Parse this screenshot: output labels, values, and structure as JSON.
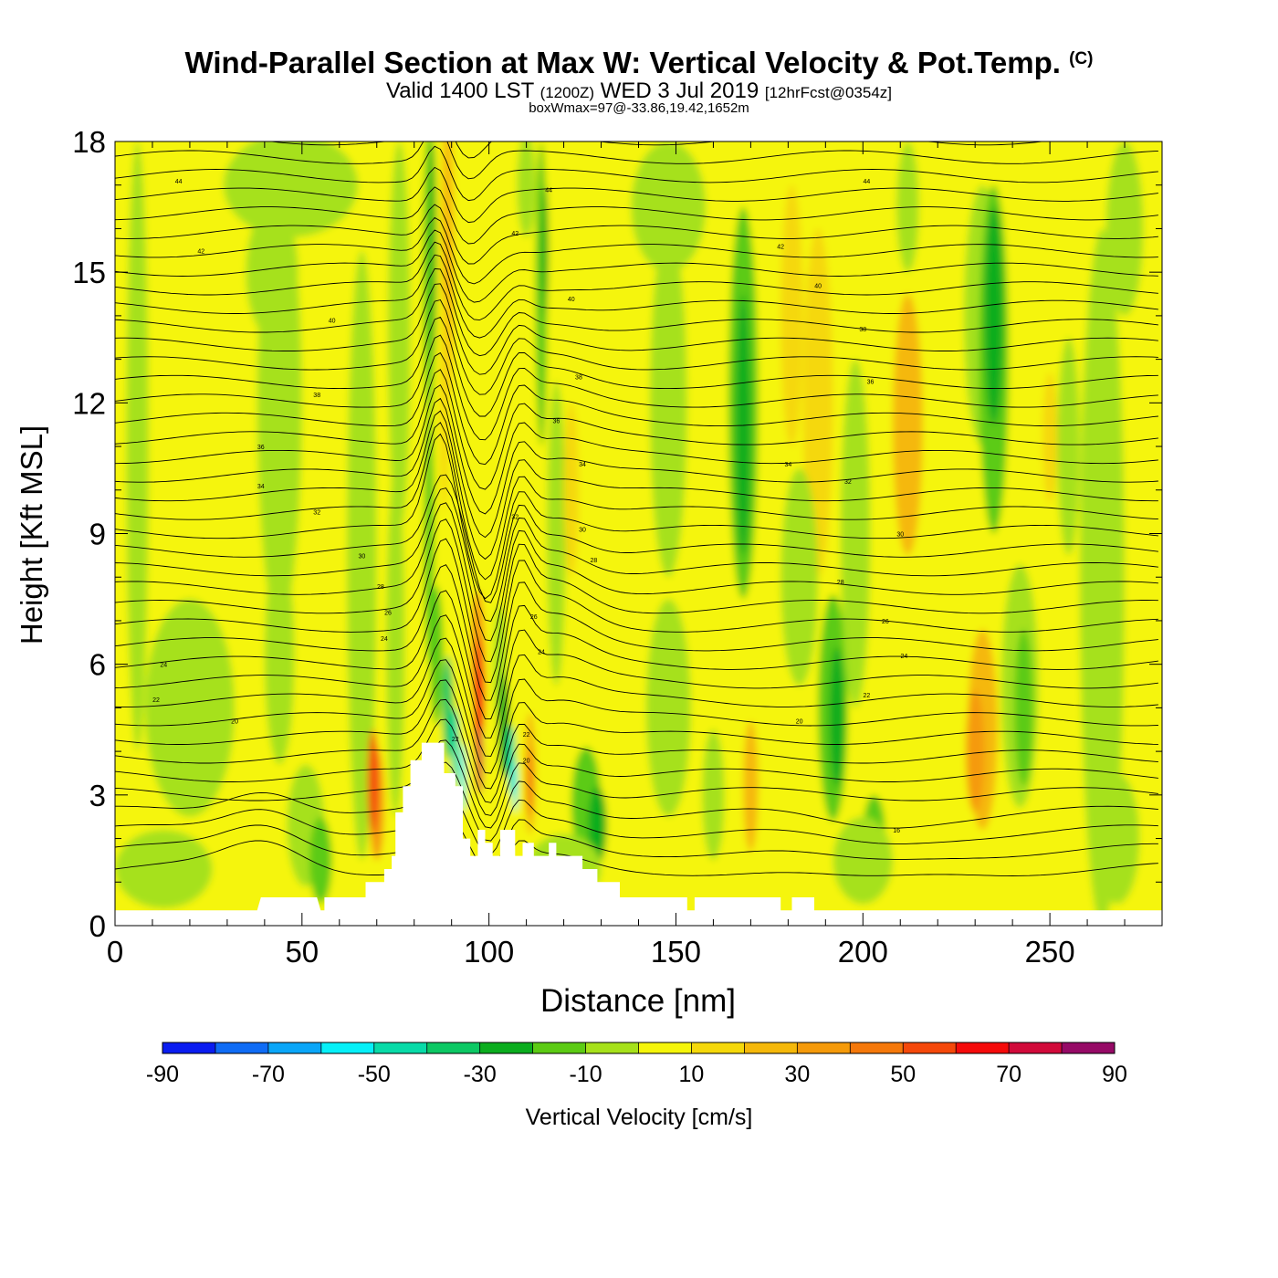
{
  "chart_data": {
    "type": "heatmap",
    "title": "Wind-Parallel Section at Max W: Vertical Velocity & Pot.Temp.",
    "title_mark": "(C)",
    "subtitle_main": "Valid 1400 LST",
    "subtitle_utc": "(1200Z)",
    "subtitle_date": "WED 3 Jul 2019",
    "subtitle_fcst": "[12hrFcst@0354z]",
    "subsubtitle": "boxWmax=97@-33.86,19.42,1652m",
    "xlabel": "Distance [nm]",
    "ylabel": "Height [Kft MSL]",
    "xlim": [
      0,
      280
    ],
    "ylim": [
      0,
      18
    ],
    "xticks": [
      0,
      50,
      100,
      150,
      200,
      250
    ],
    "yticks": [
      0,
      3,
      6,
      9,
      12,
      15,
      18
    ],
    "colorbar": {
      "label": "Vertical Velocity [cm/s]",
      "ticks": [
        "-90",
        "-70",
        "-50",
        "-30",
        "-10",
        "10",
        "30",
        "50",
        "70",
        "90"
      ],
      "colors": [
        "#0a1cf0",
        "#0f6cf5",
        "#0aa6f8",
        "#06f0f8",
        "#08dba8",
        "#0cc864",
        "#0bad1e",
        "#5ccb14",
        "#a6e11a",
        "#f5f50a",
        "#f5d80a",
        "#f5b80a",
        "#f59a0a",
        "#f5780a",
        "#f5480a",
        "#f50a0a",
        "#d10a3a",
        "#960a66"
      ]
    },
    "terrain_kft": [
      [
        0,
        0.35
      ],
      [
        38,
        0.35
      ],
      [
        39,
        0.65
      ],
      [
        54,
        0.65
      ],
      [
        55,
        0.35
      ],
      [
        56,
        0.35
      ],
      [
        56,
        0.65
      ],
      [
        67,
        0.65
      ],
      [
        67,
        1.0
      ],
      [
        72,
        1.0
      ],
      [
        72,
        1.3
      ],
      [
        74,
        1.3
      ],
      [
        74,
        1.6
      ],
      [
        75,
        1.6
      ],
      [
        75,
        2.6
      ],
      [
        77,
        2.6
      ],
      [
        77,
        3.2
      ],
      [
        79,
        3.2
      ],
      [
        79,
        3.8
      ],
      [
        82,
        3.8
      ],
      [
        82,
        4.2
      ],
      [
        88,
        4.2
      ],
      [
        88,
        3.5
      ],
      [
        91,
        3.5
      ],
      [
        91,
        3.2
      ],
      [
        93,
        3.2
      ],
      [
        93,
        2.0
      ],
      [
        95,
        2.0
      ],
      [
        95,
        1.6
      ],
      [
        97,
        1.6
      ],
      [
        97,
        2.2
      ],
      [
        99,
        2.2
      ],
      [
        99,
        1.9
      ],
      [
        101,
        1.9
      ],
      [
        101,
        1.6
      ],
      [
        103,
        1.6
      ],
      [
        103,
        2.2
      ],
      [
        107,
        2.2
      ],
      [
        107,
        1.6
      ],
      [
        109,
        1.6
      ],
      [
        109,
        1.9
      ],
      [
        112,
        1.9
      ],
      [
        112,
        1.6
      ],
      [
        116,
        1.6
      ],
      [
        116,
        1.9
      ],
      [
        118,
        1.9
      ],
      [
        118,
        1.6
      ],
      [
        125,
        1.6
      ],
      [
        125,
        1.3
      ],
      [
        129,
        1.3
      ],
      [
        129,
        1.0
      ],
      [
        135,
        1.0
      ],
      [
        135,
        0.65
      ],
      [
        153,
        0.65
      ],
      [
        153,
        0.35
      ],
      [
        155,
        0.35
      ],
      [
        155,
        0.65
      ],
      [
        178,
        0.65
      ],
      [
        178,
        0.35
      ],
      [
        181,
        0.35
      ],
      [
        181,
        0.65
      ],
      [
        187,
        0.65
      ],
      [
        187,
        0.35
      ],
      [
        280,
        0.35
      ]
    ],
    "theta_labels": [
      {
        "text": "44",
        "x": 17,
        "y": 17.1
      },
      {
        "text": "42",
        "x": 23,
        "y": 15.5
      },
      {
        "text": "40",
        "x": 58,
        "y": 13.9
      },
      {
        "text": "38",
        "x": 54,
        "y": 12.2
      },
      {
        "text": "36",
        "x": 39,
        "y": 11.0
      },
      {
        "text": "34",
        "x": 39,
        "y": 10.1
      },
      {
        "text": "32",
        "x": 54,
        "y": 9.5
      },
      {
        "text": "30",
        "x": 66,
        "y": 8.5
      },
      {
        "text": "28",
        "x": 71,
        "y": 7.8
      },
      {
        "text": "26",
        "x": 73,
        "y": 7.2
      },
      {
        "text": "24",
        "x": 72,
        "y": 6.6
      },
      {
        "text": "24",
        "x": 13,
        "y": 6.0
      },
      {
        "text": "22",
        "x": 11,
        "y": 5.2
      },
      {
        "text": "20",
        "x": 32,
        "y": 4.7
      },
      {
        "text": "44",
        "x": 116,
        "y": 16.9
      },
      {
        "text": "42",
        "x": 107,
        "y": 15.9
      },
      {
        "text": "40",
        "x": 122,
        "y": 14.4
      },
      {
        "text": "38",
        "x": 124,
        "y": 12.6
      },
      {
        "text": "36",
        "x": 118,
        "y": 11.6
      },
      {
        "text": "34",
        "x": 125,
        "y": 10.6
      },
      {
        "text": "32",
        "x": 107,
        "y": 9.4
      },
      {
        "text": "30",
        "x": 125,
        "y": 9.1
      },
      {
        "text": "28",
        "x": 128,
        "y": 8.4
      },
      {
        "text": "26",
        "x": 112,
        "y": 7.1
      },
      {
        "text": "24",
        "x": 114,
        "y": 6.3
      },
      {
        "text": "22",
        "x": 110,
        "y": 4.4
      },
      {
        "text": "20",
        "x": 110,
        "y": 3.8
      },
      {
        "text": "22",
        "x": 91,
        "y": 4.3
      },
      {
        "text": "44",
        "x": 201,
        "y": 17.1
      },
      {
        "text": "42",
        "x": 178,
        "y": 15.6
      },
      {
        "text": "40",
        "x": 188,
        "y": 14.7
      },
      {
        "text": "38",
        "x": 200,
        "y": 13.7
      },
      {
        "text": "36",
        "x": 202,
        "y": 12.5
      },
      {
        "text": "34",
        "x": 180,
        "y": 10.6
      },
      {
        "text": "32",
        "x": 196,
        "y": 10.2
      },
      {
        "text": "30",
        "x": 210,
        "y": 9.0
      },
      {
        "text": "28",
        "x": 194,
        "y": 7.9
      },
      {
        "text": "26",
        "x": 206,
        "y": 7.0
      },
      {
        "text": "24",
        "x": 211,
        "y": 6.2
      },
      {
        "text": "22",
        "x": 201,
        "y": 5.3
      },
      {
        "text": "20",
        "x": 183,
        "y": 4.7
      },
      {
        "text": "16",
        "x": 209,
        "y": 2.2
      }
    ]
  }
}
